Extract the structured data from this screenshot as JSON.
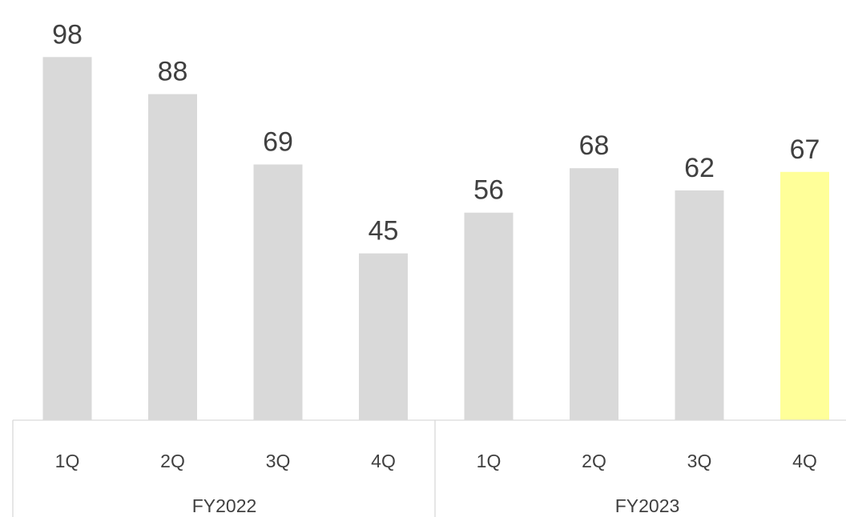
{
  "chart_data": {
    "type": "bar",
    "categories": [
      "1Q",
      "2Q",
      "3Q",
      "4Q",
      "1Q",
      "2Q",
      "3Q",
      "4Q"
    ],
    "groups": [
      {
        "label": "FY2022",
        "categories": [
          "1Q",
          "2Q",
          "3Q",
          "4Q"
        ]
      },
      {
        "label": "FY2023",
        "categories": [
          "1Q",
          "2Q",
          "3Q",
          "4Q"
        ]
      }
    ],
    "values": [
      98,
      88,
      69,
      45,
      56,
      68,
      62,
      67
    ],
    "data_labels": [
      "98",
      "88",
      "69",
      "45",
      "56",
      "68",
      "62",
      "67"
    ],
    "highlight_index": 7,
    "title": "",
    "xlabel": "",
    "ylabel": "",
    "ylim": [
      0,
      105
    ],
    "grid": false,
    "legend": "none",
    "colors": {
      "bar": "#d9d9d9",
      "highlight": "#ffff99",
      "axis": "#d9d9d9",
      "text": "#404040"
    }
  }
}
